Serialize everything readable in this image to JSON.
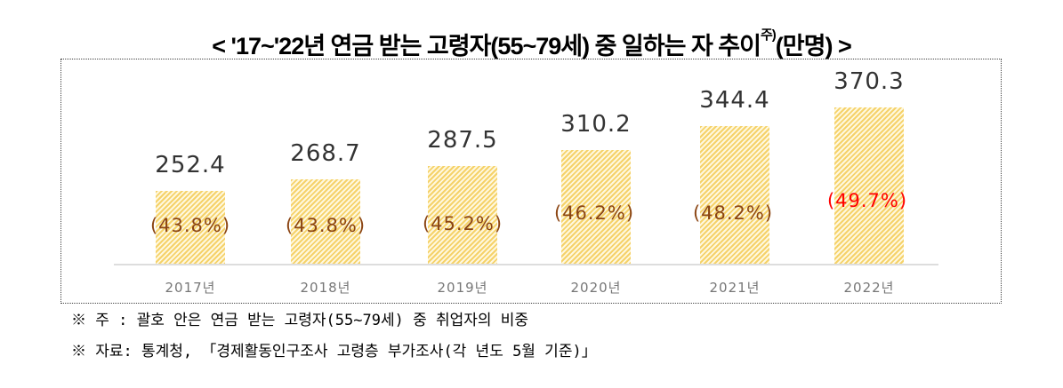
{
  "title": {
    "main": "< '17~'22년 연금 받는 고령자(55~79세) 중 일하는 자 추이",
    "sup": "주)",
    "unit": "(만명) >"
  },
  "chart_data": {
    "type": "bar",
    "title": "'17~'22년 연금 받는 고령자(55~79세) 중 일하는 자 추이(만명)",
    "categories": [
      "2017년",
      "2018년",
      "2019년",
      "2020년",
      "2021년",
      "2022년"
    ],
    "values": [
      252.4,
      268.7,
      287.5,
      310.2,
      344.4,
      370.3
    ],
    "value_labels": [
      "252.4",
      "268.7",
      "287.5",
      "310.2",
      "344.4",
      "370.3"
    ],
    "share_labels": [
      "(43.8%)",
      "(43.8%)",
      "(45.2%)",
      "(46.2%)",
      "(48.2%)",
      "(49.7%)"
    ],
    "share_colors": [
      "#8b4513",
      "#8b4513",
      "#8b4513",
      "#8b4513",
      "#8b4513",
      "#ff0000"
    ],
    "ylim": [
      150,
      380
    ],
    "xlabel": "",
    "ylabel": "",
    "bar_color": "#f5d26a"
  },
  "notes": [
    "※ 주 : 괄호 안은 연금 받는 고령자(55~79세) 중 취업자의 비중",
    "※ 자료: 통계청, 「경제활동인구조사 고령층 부가조사(각 년도 5월 기준)」"
  ]
}
